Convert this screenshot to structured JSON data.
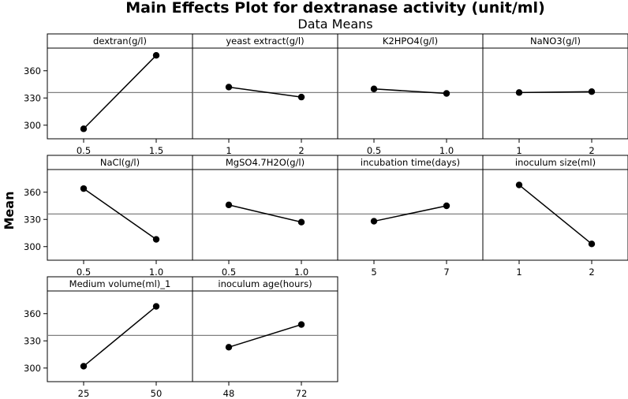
{
  "chart_data": {
    "type": "line",
    "title": "Main Effects Plot for dextranase activity (unit/ml)",
    "subtitle": "Data Means",
    "ylabel": "Mean",
    "ylim": [
      285,
      385
    ],
    "yticks": [
      "300",
      "330",
      "360"
    ],
    "overall_mean": 336,
    "panels": [
      {
        "name": "dextran(g/l)",
        "levels": [
          "0.5",
          "1.5"
        ],
        "means": [
          296,
          377
        ]
      },
      {
        "name": "yeast extract(g/l)",
        "levels": [
          "1",
          "2"
        ],
        "means": [
          342,
          331
        ]
      },
      {
        "name": "K2HPO4(g/l)",
        "levels": [
          "0.5",
          "1.0"
        ],
        "means": [
          340,
          335
        ]
      },
      {
        "name": "NaNO3(g/l)",
        "levels": [
          "1",
          "2"
        ],
        "means": [
          336,
          337
        ]
      },
      {
        "name": "NaCl(g/l)",
        "levels": [
          "0.5",
          "1.0"
        ],
        "means": [
          364,
          308
        ]
      },
      {
        "name": "MgSO4.7H2O(g/l)",
        "levels": [
          "0.5",
          "1.0"
        ],
        "means": [
          346,
          327
        ]
      },
      {
        "name": "incubation time(days)",
        "levels": [
          "5",
          "7"
        ],
        "means": [
          328,
          345
        ]
      },
      {
        "name": "inoculum size(ml)",
        "levels": [
          "1",
          "2"
        ],
        "means": [
          368,
          303
        ]
      },
      {
        "name": "Medium volume(ml)_1",
        "levels": [
          "25",
          "50"
        ],
        "means": [
          302,
          368
        ]
      },
      {
        "name": "inoculum age(hours)",
        "levels": [
          "48",
          "72"
        ],
        "means": [
          323,
          348
        ]
      }
    ]
  }
}
